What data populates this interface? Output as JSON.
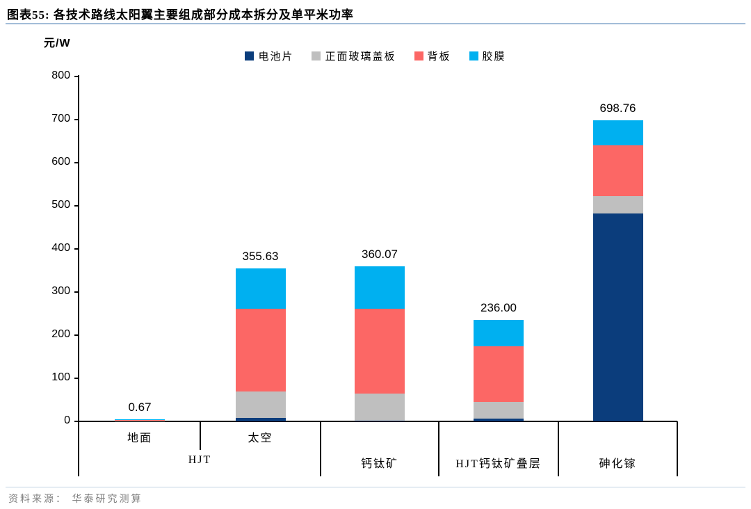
{
  "header": {
    "title": "图表55:  各技术路线太阳翼主要组成部分成本拆分及单平米功率"
  },
  "footer": {
    "source": "资料来源： 华泰研究测算"
  },
  "chart_data": {
    "type": "bar",
    "stacked": true,
    "title": "各技术路线太阳翼主要组成部分成本拆分及单平米功率",
    "unit_label": "元/W",
    "ylabel": "元/W",
    "ylim": [
      0,
      800
    ],
    "ytick_step": 100,
    "grid": false,
    "legend_position": "top",
    "categories": [
      "地面",
      "太空",
      "钙钛矿",
      "HJT钙钛矿叠层",
      "砷化镓"
    ],
    "axis_rows": {
      "sub_row": [
        {
          "label": "地面",
          "cells": [
            0,
            1
          ]
        },
        {
          "label": "太空",
          "cells": [
            1,
            2
          ]
        }
      ],
      "group_row": [
        {
          "label": "HJT",
          "cells": [
            0,
            2
          ]
        },
        {
          "label": "钙钛矿",
          "cells": [
            2,
            3
          ]
        },
        {
          "label": "HJT钙钛矿叠层",
          "cells": [
            3,
            4
          ]
        },
        {
          "label": "砷化镓",
          "cells": [
            4,
            5
          ]
        }
      ]
    },
    "series": [
      {
        "name": "电池片",
        "color": "#0b3d7c",
        "values": [
          0.2,
          8.0,
          2.0,
          6.0,
          483.0
        ]
      },
      {
        "name": "正面玻璃盖板",
        "color": "#bfbfbf",
        "values": [
          0.1,
          62.0,
          62.0,
          39.0,
          40.0
        ]
      },
      {
        "name": "背板",
        "color": "#fc6765",
        "values": [
          0.2,
          191.0,
          197.0,
          129.0,
          118.0
        ]
      },
      {
        "name": "胶膜",
        "color": "#00b0f0",
        "values": [
          0.17,
          94.63,
          99.07,
          62.0,
          57.76
        ]
      }
    ],
    "total_labels": [
      "0.67",
      "355.63",
      "360.07",
      "236.00",
      "698.76"
    ]
  }
}
